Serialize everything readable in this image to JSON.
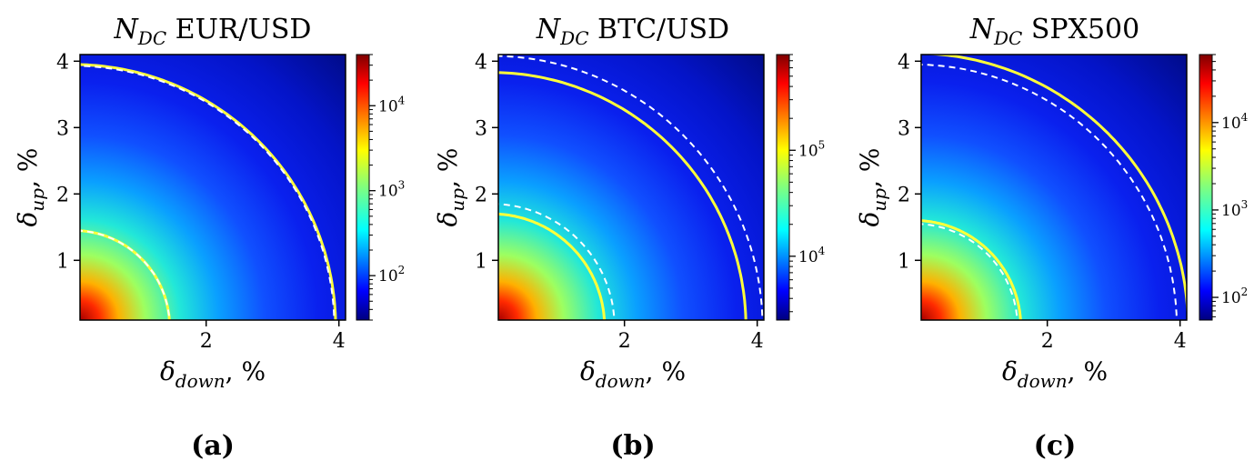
{
  "colors": {
    "yellow_contour": "#ffff3a",
    "white_contour": "#ffffff",
    "colormap": "jet"
  },
  "chart_data": [
    {
      "type": "heatmap",
      "panel_label": "(a)",
      "title_symbol": "N",
      "title_subscript": "DC",
      "title_rest": " EUR/USD",
      "xlabel_symbol": "δ",
      "xlabel_subscript": "down",
      "xlabel_rest": ", %",
      "ylabel_symbol": "δ",
      "ylabel_subscript": "up",
      "ylabel_rest": ", %",
      "xlim": [
        0.1,
        4.1
      ],
      "ylim": [
        0.1,
        4.1
      ],
      "xticks": [
        2,
        4
      ],
      "yticks": [
        1,
        2,
        3,
        4
      ],
      "colorbar": {
        "scale": "log",
        "min": 30,
        "max": 40000,
        "ticks": [
          {
            "value": 100,
            "exp": "2"
          },
          {
            "value": 1000,
            "exp": "3"
          },
          {
            "value": 10000,
            "exp": "4"
          }
        ]
      },
      "contours": [
        {
          "style": "solid",
          "color": "yellow",
          "radius": 1.45
        },
        {
          "style": "dashed",
          "color": "white",
          "radius": 1.45
        },
        {
          "style": "solid",
          "color": "yellow",
          "radius": 3.95
        },
        {
          "style": "dashed",
          "color": "white",
          "radius": 3.93
        }
      ]
    },
    {
      "type": "heatmap",
      "panel_label": "(b)",
      "title_symbol": "N",
      "title_subscript": "DC",
      "title_rest": " BTC/USD",
      "xlabel_symbol": "δ",
      "xlabel_subscript": "down",
      "xlabel_rest": ", %",
      "ylabel_symbol": "δ",
      "ylabel_subscript": "up",
      "ylabel_rest": ", %",
      "xlim": [
        0.1,
        4.1
      ],
      "ylim": [
        0.1,
        4.1
      ],
      "xticks": [
        2,
        4
      ],
      "yticks": [
        1,
        2,
        3,
        4
      ],
      "colorbar": {
        "scale": "log",
        "min": 2500,
        "max": 800000,
        "ticks": [
          {
            "value": 10000,
            "exp": "4"
          },
          {
            "value": 100000,
            "exp": "5"
          }
        ]
      },
      "contours": [
        {
          "style": "solid",
          "color": "yellow",
          "radius": 1.7
        },
        {
          "style": "dashed",
          "color": "white",
          "radius": 1.85
        },
        {
          "style": "solid",
          "color": "yellow",
          "radius": 3.83
        },
        {
          "style": "dashed",
          "color": "white",
          "radius": 4.08
        }
      ]
    },
    {
      "type": "heatmap",
      "panel_label": "(c)",
      "title_symbol": "N",
      "title_subscript": "DC",
      "title_rest": " SPX500",
      "xlabel_symbol": "δ",
      "xlabel_subscript": "down",
      "xlabel_rest": ", %",
      "ylabel_symbol": "δ",
      "ylabel_subscript": "up",
      "ylabel_rest": ", %",
      "xlim": [
        0.1,
        4.1
      ],
      "ylim": [
        0.1,
        4.1
      ],
      "xticks": [
        2,
        4
      ],
      "yticks": [
        1,
        2,
        3,
        4
      ],
      "colorbar": {
        "scale": "log",
        "min": 55,
        "max": 60000,
        "ticks": [
          {
            "value": 100,
            "exp": "2"
          },
          {
            "value": 1000,
            "exp": "3"
          },
          {
            "value": 10000,
            "exp": "4"
          }
        ]
      },
      "contours": [
        {
          "style": "solid",
          "color": "yellow",
          "radius": 1.6
        },
        {
          "style": "dashed",
          "color": "white",
          "radius": 1.55
        },
        {
          "style": "solid",
          "color": "yellow",
          "radius": 4.12
        },
        {
          "style": "dashed",
          "color": "white",
          "radius": 3.95
        }
      ]
    }
  ]
}
